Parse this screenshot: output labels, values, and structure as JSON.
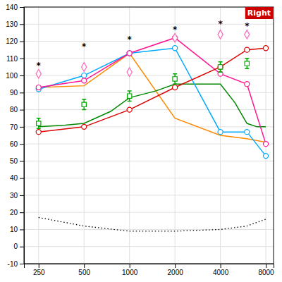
{
  "chart_data": {
    "type": "line",
    "title": "Right",
    "log": "x",
    "grid": true,
    "xlim": [
      200,
      9000
    ],
    "xticks": [
      250,
      500,
      1000,
      2000,
      4000,
      8000
    ],
    "ylim": [
      -10,
      140
    ],
    "yticks": [
      -10,
      0,
      10,
      20,
      30,
      40,
      50,
      60,
      70,
      80,
      90,
      100,
      110,
      120,
      130,
      140
    ],
    "series": [
      {
        "type": "line",
        "color": "#ff8800",
        "x": [
          250,
          500,
          1000,
          2000,
          4000,
          6000,
          8000
        ],
        "values": [
          93,
          94,
          113,
          75,
          65,
          63,
          61
        ]
      },
      {
        "type": "line",
        "color": "#008800",
        "x": [
          250,
          375,
          500,
          750,
          1000,
          1500,
          2000,
          3000,
          4000,
          5000,
          6000,
          7000,
          8000
        ],
        "values": [
          70,
          71,
          72,
          79,
          87,
          91,
          95,
          95,
          95,
          84,
          72,
          70,
          70
        ]
      },
      {
        "type": "line",
        "color": "#00aaff",
        "marker": "circle",
        "x": [
          250,
          500,
          1000,
          2000,
          4000,
          6000,
          8000
        ],
        "values": [
          92,
          100,
          113,
          116,
          67,
          67,
          53
        ]
      },
      {
        "type": "line",
        "color": "#ff1493",
        "marker": "circle",
        "x": [
          250,
          500,
          1000,
          2000,
          4000,
          6000,
          8000
        ],
        "values": [
          93,
          97,
          113,
          122,
          101,
          95,
          60
        ]
      },
      {
        "type": "line",
        "color": "#dd0000",
        "marker": "circle",
        "x": [
          250,
          500,
          1000,
          2000,
          4000,
          6000,
          8000
        ],
        "values": [
          67,
          70,
          80,
          93,
          105,
          115,
          116
        ]
      },
      {
        "type": "scatter",
        "color": "#00aa00",
        "marker": "square",
        "x": [
          250,
          500,
          1000,
          2000,
          4000,
          6000
        ],
        "values": [
          72,
          83,
          88,
          98,
          105,
          107
        ],
        "errors": [
          3,
          3,
          3,
          3,
          3,
          3
        ]
      },
      {
        "type": "scatter",
        "color": "#ff66bb",
        "marker": "diamond",
        "x": [
          250,
          500,
          1000,
          2000,
          4000,
          6000
        ],
        "values": [
          101,
          105,
          102,
          122,
          124,
          124
        ]
      },
      {
        "type": "line",
        "color": "#000000",
        "line_style": "dotted",
        "x": [
          250,
          500,
          1000,
          2000,
          4000,
          6000,
          8000
        ],
        "values": [
          17,
          12,
          9,
          9,
          10,
          12,
          16
        ]
      }
    ],
    "annotations": [
      {
        "text": "*",
        "x": 250,
        "y": 106
      },
      {
        "text": "*",
        "x": 500,
        "y": 117
      },
      {
        "text": "*",
        "x": 1000,
        "y": 121
      },
      {
        "text": "*",
        "x": 2000,
        "y": 127
      },
      {
        "text": "*",
        "x": 4000,
        "y": 130
      },
      {
        "text": "*",
        "x": 6000,
        "y": 129
      }
    ]
  }
}
